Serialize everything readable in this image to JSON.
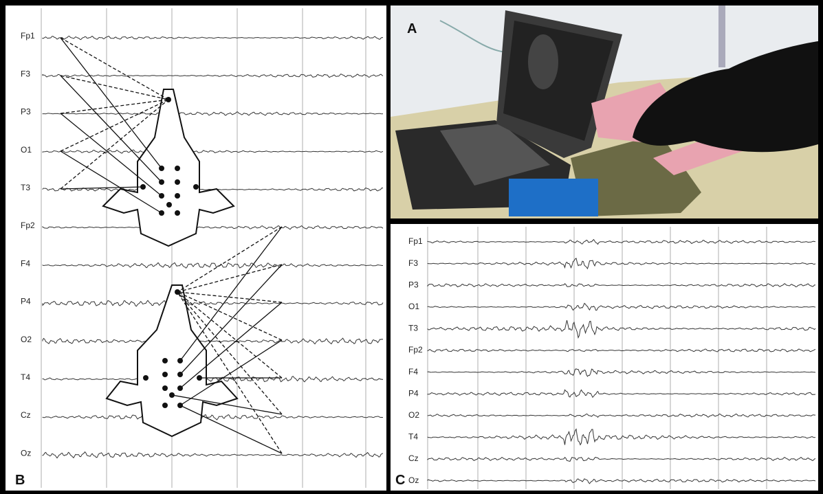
{
  "panels": {
    "a": {
      "label": "A"
    },
    "b": {
      "label": "B",
      "channels": [
        "Fp1",
        "F3",
        "P3",
        "O1",
        "T3",
        "Fp2",
        "F4",
        "P4",
        "O2",
        "T4",
        "Cz",
        "Oz"
      ]
    },
    "c": {
      "label": "C",
      "channels": [
        "Fp1",
        "F3",
        "P3",
        "O1",
        "T3",
        "Fp2",
        "F4",
        "P4",
        "O2",
        "T4",
        "Cz",
        "Oz"
      ]
    }
  }
}
